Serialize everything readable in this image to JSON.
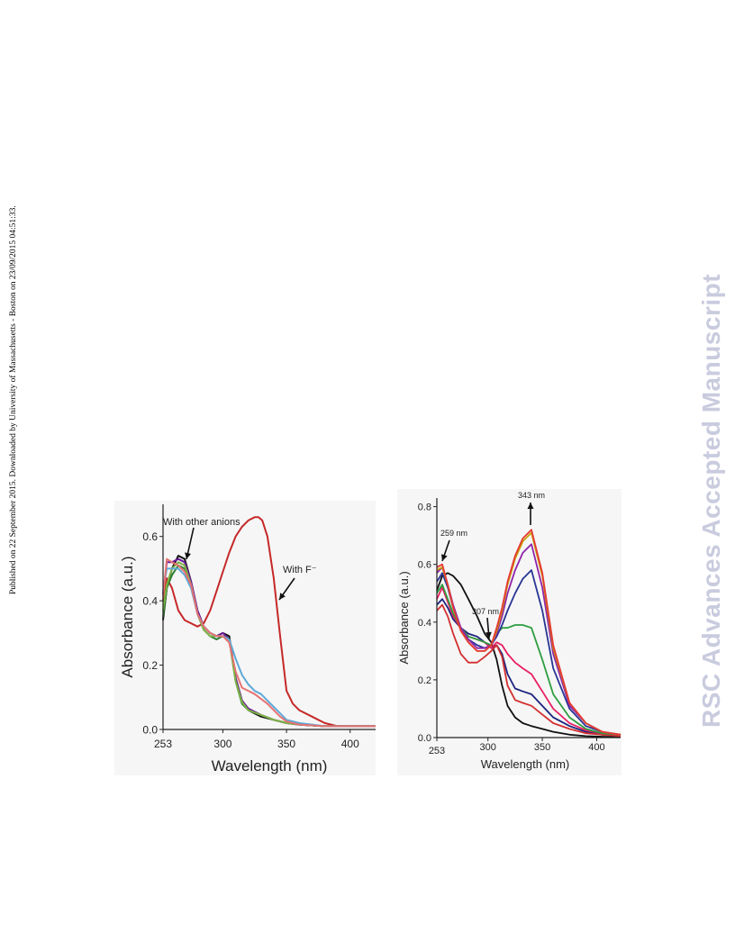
{
  "side_note": "Published on 22 September 2015. Downloaded by University of Massachusetts - Boston on 23/09/2015 04:51:33.",
  "watermark": "RSC Advances Accepted Manuscript",
  "chart_data": [
    {
      "type": "line",
      "xlabel": "Wavelength (nm)",
      "ylabel": "Absorbance (a.u.)",
      "xlim": [
        253,
        420
      ],
      "ylim": [
        0,
        0.7
      ],
      "x_ticks": [
        "253",
        "300",
        "350",
        "400"
      ],
      "y_ticks": [
        "0.0",
        "0.2",
        "0.4",
        "0.6"
      ],
      "grid": false,
      "annotations": [
        {
          "text": "With other anions",
          "x": 268,
          "y": 0.6
        },
        {
          "text": "With F⁻",
          "x": 350,
          "y": 0.46
        }
      ],
      "series": [
        {
          "color": "#c62828",
          "x": [
            253,
            256,
            260,
            265,
            270,
            275,
            280,
            285,
            290,
            295,
            300,
            305,
            310,
            315,
            320,
            325,
            328,
            331,
            335,
            340,
            345,
            350,
            355,
            360,
            370,
            380,
            390,
            400,
            410,
            420
          ],
          "y": [
            0.4,
            0.47,
            0.44,
            0.37,
            0.34,
            0.33,
            0.32,
            0.33,
            0.37,
            0.43,
            0.49,
            0.55,
            0.6,
            0.63,
            0.65,
            0.66,
            0.66,
            0.65,
            0.6,
            0.47,
            0.29,
            0.12,
            0.08,
            0.06,
            0.04,
            0.02,
            0.01,
            0.01,
            0.01,
            0.01
          ]
        },
        {
          "color": "#111111",
          "x": [
            253,
            256,
            260,
            265,
            270,
            275,
            280,
            285,
            290,
            295,
            300,
            305,
            310,
            315,
            320,
            330,
            340,
            350,
            360,
            380,
            400,
            420
          ],
          "y": [
            0.34,
            0.44,
            0.5,
            0.54,
            0.53,
            0.46,
            0.37,
            0.32,
            0.3,
            0.29,
            0.3,
            0.29,
            0.16,
            0.09,
            0.06,
            0.04,
            0.03,
            0.02,
            0.015,
            0.01,
            0.01,
            0.01
          ]
        },
        {
          "color": "#2e7d32",
          "x": [
            253,
            256,
            260,
            265,
            270,
            275,
            280,
            285,
            290,
            295,
            300,
            305,
            310,
            315,
            320,
            330,
            340,
            350,
            360,
            380,
            400,
            420
          ],
          "y": [
            0.35,
            0.44,
            0.48,
            0.51,
            0.5,
            0.45,
            0.36,
            0.31,
            0.29,
            0.28,
            0.29,
            0.28,
            0.15,
            0.08,
            0.06,
            0.045,
            0.03,
            0.02,
            0.015,
            0.01,
            0.01,
            0.01
          ]
        },
        {
          "color": "#6a1b9a",
          "x": [
            253,
            256,
            260,
            265,
            270,
            275,
            280,
            285,
            290,
            295,
            300,
            305,
            310,
            315,
            320,
            330,
            340,
            350,
            360,
            380,
            400,
            420
          ],
          "y": [
            0.42,
            0.52,
            0.52,
            0.53,
            0.52,
            0.46,
            0.37,
            0.32,
            0.3,
            0.29,
            0.3,
            0.28,
            0.16,
            0.09,
            0.065,
            0.045,
            0.03,
            0.02,
            0.015,
            0.01,
            0.01,
            0.01
          ]
        },
        {
          "color": "#7cb342",
          "x": [
            253,
            256,
            260,
            265,
            270,
            275,
            280,
            285,
            290,
            295,
            300,
            305,
            310,
            315,
            320,
            330,
            340,
            350,
            360,
            380,
            400,
            420
          ],
          "y": [
            0.37,
            0.45,
            0.5,
            0.52,
            0.51,
            0.45,
            0.36,
            0.31,
            0.29,
            0.29,
            0.29,
            0.28,
            0.15,
            0.085,
            0.06,
            0.045,
            0.03,
            0.02,
            0.015,
            0.01,
            0.01,
            0.01
          ]
        },
        {
          "color": "#5da9d6",
          "x": [
            253,
            256,
            260,
            265,
            270,
            275,
            280,
            285,
            290,
            295,
            300,
            305,
            310,
            315,
            320,
            325,
            330,
            335,
            340,
            345,
            350,
            360,
            380,
            400,
            420
          ],
          "y": [
            0.43,
            0.5,
            0.5,
            0.5,
            0.48,
            0.44,
            0.36,
            0.32,
            0.3,
            0.29,
            0.29,
            0.28,
            0.22,
            0.17,
            0.14,
            0.12,
            0.11,
            0.09,
            0.07,
            0.05,
            0.03,
            0.02,
            0.01,
            0.01,
            0.01
          ]
        },
        {
          "color": "#e57373",
          "x": [
            253,
            256,
            260,
            265,
            270,
            275,
            280,
            285,
            290,
            295,
            300,
            305,
            310,
            315,
            320,
            325,
            330,
            335,
            340,
            345,
            350,
            360,
            380,
            400,
            420
          ],
          "y": [
            0.41,
            0.53,
            0.52,
            0.51,
            0.49,
            0.45,
            0.36,
            0.32,
            0.3,
            0.29,
            0.29,
            0.27,
            0.18,
            0.13,
            0.12,
            0.11,
            0.095,
            0.08,
            0.06,
            0.04,
            0.025,
            0.015,
            0.01,
            0.01,
            0.01
          ]
        }
      ]
    },
    {
      "type": "line",
      "xlabel": "Wavelength (nm)",
      "ylabel": "Absorbance (a.u.)",
      "xlim": [
        253,
        422
      ],
      "ylim": [
        0,
        0.83
      ],
      "x_ticks": [
        "253",
        "300",
        "350",
        "400"
      ],
      "y_ticks": [
        "0.0",
        "0.2",
        "0.4",
        "0.6",
        "0.8"
      ],
      "grid": false,
      "annotations": [
        {
          "text": "259 nm",
          "x": 259
        },
        {
          "text": "307 nm",
          "x": 307
        },
        {
          "text": "343 nm",
          "x": 343
        }
      ],
      "series": [
        {
          "color": "#111111",
          "x": [
            253,
            258,
            263,
            268,
            275,
            282,
            290,
            297,
            303,
            308,
            313,
            318,
            325,
            332,
            340,
            350,
            360,
            375,
            390,
            405,
            422
          ],
          "y": [
            0.51,
            0.56,
            0.57,
            0.56,
            0.53,
            0.48,
            0.42,
            0.36,
            0.33,
            0.27,
            0.18,
            0.11,
            0.07,
            0.05,
            0.04,
            0.03,
            0.02,
            0.01,
            0.005,
            0.003,
            0.002
          ]
        },
        {
          "color": "#1a237e",
          "x": [
            253,
            258,
            263,
            268,
            275,
            282,
            290,
            297,
            303,
            308,
            313,
            318,
            325,
            332,
            340,
            350,
            360,
            375,
            390,
            405,
            422
          ],
          "y": [
            0.46,
            0.48,
            0.45,
            0.41,
            0.38,
            0.36,
            0.35,
            0.33,
            0.31,
            0.32,
            0.29,
            0.22,
            0.17,
            0.16,
            0.15,
            0.11,
            0.07,
            0.04,
            0.02,
            0.01,
            0.005
          ]
        },
        {
          "color": "#d32f2f",
          "x": [
            253,
            258,
            263,
            268,
            275,
            282,
            290,
            297,
            303,
            308,
            313,
            318,
            325,
            332,
            340,
            350,
            360,
            375,
            390,
            405,
            422
          ],
          "y": [
            0.44,
            0.46,
            0.42,
            0.36,
            0.29,
            0.26,
            0.26,
            0.28,
            0.3,
            0.32,
            0.28,
            0.18,
            0.13,
            0.12,
            0.11,
            0.08,
            0.05,
            0.03,
            0.015,
            0.01,
            0.005
          ]
        },
        {
          "color": "#e91e63",
          "x": [
            253,
            258,
            263,
            268,
            275,
            282,
            290,
            297,
            303,
            308,
            313,
            318,
            325,
            332,
            340,
            350,
            360,
            375,
            390,
            405,
            422
          ],
          "y": [
            0.48,
            0.52,
            0.47,
            0.42,
            0.38,
            0.35,
            0.34,
            0.33,
            0.31,
            0.33,
            0.32,
            0.29,
            0.26,
            0.24,
            0.22,
            0.16,
            0.1,
            0.05,
            0.025,
            0.015,
            0.01
          ]
        },
        {
          "color": "#2e9d3f",
          "x": [
            253,
            258,
            263,
            268,
            275,
            282,
            290,
            297,
            303,
            308,
            313,
            318,
            325,
            332,
            340,
            350,
            360,
            375,
            390,
            405,
            422
          ],
          "y": [
            0.5,
            0.53,
            0.48,
            0.43,
            0.38,
            0.35,
            0.34,
            0.33,
            0.32,
            0.36,
            0.38,
            0.38,
            0.39,
            0.39,
            0.38,
            0.27,
            0.15,
            0.07,
            0.03,
            0.015,
            0.01
          ]
        },
        {
          "color": "#283593",
          "x": [
            253,
            258,
            263,
            268,
            275,
            282,
            290,
            297,
            303,
            308,
            313,
            318,
            325,
            332,
            340,
            350,
            360,
            375,
            390,
            405,
            422
          ],
          "y": [
            0.54,
            0.57,
            0.52,
            0.45,
            0.38,
            0.34,
            0.32,
            0.31,
            0.32,
            0.35,
            0.39,
            0.44,
            0.5,
            0.55,
            0.58,
            0.44,
            0.24,
            0.1,
            0.04,
            0.02,
            0.01
          ]
        },
        {
          "color": "#8e24aa",
          "x": [
            253,
            258,
            263,
            268,
            275,
            282,
            290,
            297,
            303,
            308,
            313,
            318,
            325,
            332,
            340,
            350,
            360,
            375,
            390,
            405,
            422
          ],
          "y": [
            0.57,
            0.59,
            0.53,
            0.46,
            0.38,
            0.34,
            0.31,
            0.31,
            0.32,
            0.36,
            0.42,
            0.5,
            0.58,
            0.64,
            0.67,
            0.52,
            0.29,
            0.11,
            0.05,
            0.02,
            0.01
          ]
        },
        {
          "color": "#c6a000",
          "x": [
            253,
            258,
            263,
            268,
            275,
            282,
            290,
            297,
            303,
            308,
            313,
            318,
            325,
            332,
            340,
            350,
            360,
            375,
            390,
            405,
            422
          ],
          "y": [
            0.58,
            0.59,
            0.53,
            0.45,
            0.37,
            0.33,
            0.3,
            0.3,
            0.32,
            0.37,
            0.44,
            0.53,
            0.62,
            0.68,
            0.71,
            0.56,
            0.31,
            0.12,
            0.05,
            0.02,
            0.01
          ]
        },
        {
          "color": "#e53935",
          "x": [
            253,
            258,
            263,
            268,
            275,
            282,
            290,
            297,
            303,
            308,
            313,
            318,
            325,
            332,
            340,
            350,
            360,
            375,
            390,
            405,
            422
          ],
          "y": [
            0.59,
            0.6,
            0.53,
            0.45,
            0.37,
            0.33,
            0.3,
            0.3,
            0.32,
            0.38,
            0.45,
            0.54,
            0.63,
            0.69,
            0.72,
            0.57,
            0.32,
            0.12,
            0.05,
            0.02,
            0.01
          ]
        }
      ]
    }
  ]
}
